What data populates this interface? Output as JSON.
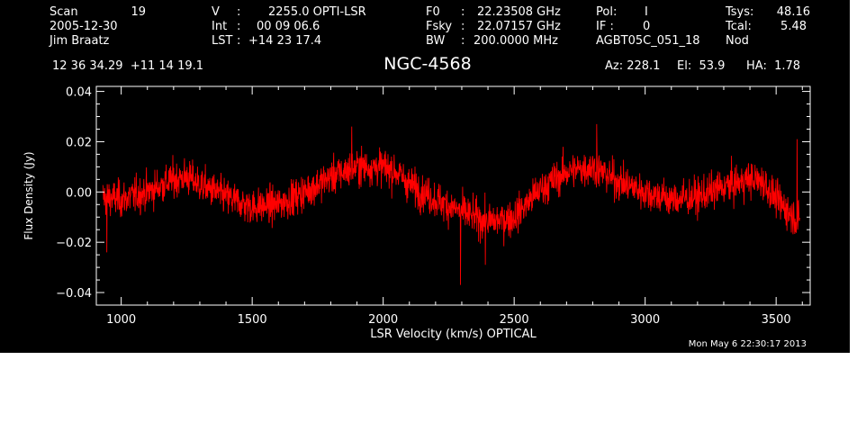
{
  "header": {
    "scan_label": "Scan",
    "scan_value": "19",
    "date": "2005-12-30",
    "observer": "Jim Braatz",
    "v_label": "V",
    "v_value": "2255.0 OPTI-LSR",
    "int_label": "Int",
    "int_value": "00 09 06.6",
    "lst_label": "LST",
    "lst_value": "+14 23 17.4",
    "f0_label": "F0",
    "f0_value": "22.23508 GHz",
    "fsky_label": "Fsky",
    "fsky_value": "22.07157 GHz",
    "bw_label": "BW",
    "bw_value": "200.0000 MHz",
    "pol_label": "Pol:",
    "pol_value": "I",
    "if_label": "IF :",
    "if_value": "0",
    "project": "AGBT05C_051_18",
    "tsys_label": "Tsys:",
    "tsys_value": "48.16",
    "tcal_label": "Tcal:",
    "tcal_value": "5.48",
    "mode": "Nod",
    "coords": "12 36 34.29  +11 14 19.1",
    "az": "Az: 228.1",
    "el": "El:  53.9",
    "ha": "HA:  1.78"
  },
  "timestamp": "Mon May  6 22:30:17 2013",
  "colors": {
    "background": "#000000",
    "foreground": "#ffffff",
    "trace": "#ff0000"
  },
  "chart_data": {
    "type": "line",
    "title": "NGC-4568",
    "xlabel": "LSR Velocity (km/s) OPTICAL",
    "ylabel": "Flux Density (Jy)",
    "xlim": [
      905,
      3630
    ],
    "ylim": [
      -0.045,
      0.042
    ],
    "xticks": [
      1000,
      1500,
      2000,
      2500,
      3000,
      3500
    ],
    "xtick_labels": [
      "1000",
      "1500",
      "2000",
      "2500",
      "3000",
      "3500"
    ],
    "yticks": [
      -0.04,
      -0.02,
      0.0,
      0.02,
      0.04
    ],
    "ytick_labels": [
      "−0.04",
      "−0.02",
      "0.00",
      "0.02",
      "0.04"
    ],
    "series": [
      {
        "color": "#ff0000",
        "x_start": 930,
        "x_end": 3590,
        "baseline_x": [
          930,
          1000,
          1100,
          1200,
          1250,
          1300,
          1400,
          1500,
          1600,
          1700,
          1800,
          1900,
          2000,
          2050,
          2100,
          2200,
          2300,
          2400,
          2500,
          2600,
          2700,
          2800,
          2900,
          3000,
          3100,
          3200,
          3300,
          3400,
          3450,
          3500,
          3590
        ],
        "baseline_y": [
          -0.002,
          -0.003,
          0.0,
          0.005,
          0.006,
          0.003,
          -0.002,
          -0.006,
          -0.005,
          0.0,
          0.006,
          0.01,
          0.01,
          0.008,
          0.003,
          -0.003,
          -0.008,
          -0.012,
          -0.01,
          0.001,
          0.008,
          0.01,
          0.004,
          0.0,
          -0.003,
          -0.002,
          0.002,
          0.005,
          0.004,
          -0.003,
          -0.012
        ],
        "noise_rms": 0.0065,
        "spikes": [
          {
            "x": 2295,
            "y": -0.037
          },
          {
            "x": 2390,
            "y": -0.029
          },
          {
            "x": 2815,
            "y": 0.027
          },
          {
            "x": 3580,
            "y": 0.021
          },
          {
            "x": 945,
            "y": -0.024
          },
          {
            "x": 1880,
            "y": 0.026
          }
        ]
      }
    ]
  }
}
